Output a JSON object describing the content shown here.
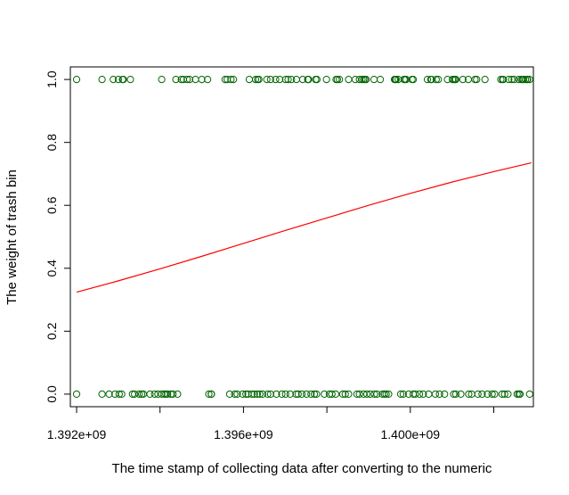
{
  "chart_data": {
    "type": "scatter",
    "title": "",
    "xlabel": "The time stamp of collecting data after converting to the numeric",
    "ylabel": "The weight of trash bin",
    "xlim": [
      1391850000,
      1402950000
    ],
    "ylim": [
      -0.04,
      1.04
    ],
    "x_ticks": [
      1392000000,
      1394000000,
      1396000000,
      1398000000,
      1400000000,
      1402000000
    ],
    "x_tick_labels": [
      "1.392e+09",
      "",
      "1.396e+09",
      "",
      "1.400e+09",
      ""
    ],
    "y_ticks": [
      0.0,
      0.2,
      0.4,
      0.6,
      0.8,
      1.0
    ],
    "y_tick_labels": [
      "0.0",
      "0.2",
      "0.4",
      "0.6",
      "0.8",
      "1.0"
    ],
    "point_color": "#006400",
    "curve_color": "#ff0000",
    "series": [
      {
        "marker": "open-circle",
        "y": 1,
        "x": [
          1392000000,
          1392610000,
          1392880000,
          1393000000,
          1393100000,
          1393120000,
          1393290000,
          1394040000,
          1394380000,
          1394510000,
          1394560000,
          1394650000,
          1394710000,
          1394850000,
          1395000000,
          1395140000,
          1395560000,
          1395610000,
          1395700000,
          1395760000,
          1396140000,
          1396290000,
          1396340000,
          1396370000,
          1396560000,
          1396650000,
          1396770000,
          1396870000,
          1397010000,
          1397070000,
          1397150000,
          1397270000,
          1397420000,
          1397540000,
          1397560000,
          1397730000,
          1397760000,
          1397990000,
          1398220000,
          1398250000,
          1398300000,
          1398520000,
          1398680000,
          1398780000,
          1398840000,
          1398880000,
          1398910000,
          1398940000,
          1399130000,
          1399280000,
          1399620000,
          1399640000,
          1399660000,
          1399710000,
          1399850000,
          1399870000,
          1399900000,
          1400040000,
          1400070000,
          1400410000,
          1400490000,
          1400510000,
          1400620000,
          1400670000,
          1400890000,
          1401010000,
          1401040000,
          1401070000,
          1401090000,
          1401260000,
          1401390000,
          1401550000,
          1401590000,
          1401790000,
          1402170000,
          1402210000,
          1402230000,
          1402360000,
          1402430000,
          1402490000,
          1402600000,
          1402660000,
          1402690000,
          1402710000,
          1402760000,
          1402800000,
          1402810000,
          1402860000
        ]
      },
      {
        "marker": "open-circle",
        "y": 0,
        "x": [
          1392000000,
          1392610000,
          1392780000,
          1392920000,
          1393020000,
          1393080000,
          1393340000,
          1393390000,
          1393500000,
          1393560000,
          1393600000,
          1393760000,
          1393870000,
          1393950000,
          1394040000,
          1394100000,
          1394140000,
          1394180000,
          1394260000,
          1394310000,
          1394420000,
          1395170000,
          1395230000,
          1395230000,
          1395670000,
          1395790000,
          1395850000,
          1395980000,
          1396060000,
          1396110000,
          1396200000,
          1396260000,
          1396330000,
          1396390000,
          1396460000,
          1396580000,
          1396650000,
          1396790000,
          1396920000,
          1397010000,
          1397120000,
          1397260000,
          1397310000,
          1397400000,
          1397510000,
          1397620000,
          1397700000,
          1397750000,
          1397940000,
          1398060000,
          1398120000,
          1398210000,
          1398380000,
          1398440000,
          1398520000,
          1398720000,
          1398780000,
          1398880000,
          1398960000,
          1399040000,
          1399140000,
          1399200000,
          1399330000,
          1399380000,
          1399420000,
          1399480000,
          1399770000,
          1399830000,
          1399960000,
          1400070000,
          1400120000,
          1400220000,
          1400310000,
          1400440000,
          1400600000,
          1400700000,
          1400820000,
          1401040000,
          1401090000,
          1401210000,
          1401400000,
          1401470000,
          1401620000,
          1401720000,
          1401850000,
          1401960000,
          1402020000,
          1402200000,
          1402260000,
          1402340000,
          1402560000,
          1402600000,
          1402630000,
          1402860000
        ]
      },
      {
        "marker": "line",
        "x": [
          1392000000,
          1393000000,
          1394000000,
          1395000000,
          1396000000,
          1397000000,
          1398000000,
          1399000000,
          1400000000,
          1401000000,
          1402000000,
          1402900000
        ],
        "y": [
          0.324,
          0.36,
          0.398,
          0.438,
          0.479,
          0.52,
          0.56,
          0.6,
          0.638,
          0.674,
          0.707,
          0.735
        ]
      }
    ]
  }
}
